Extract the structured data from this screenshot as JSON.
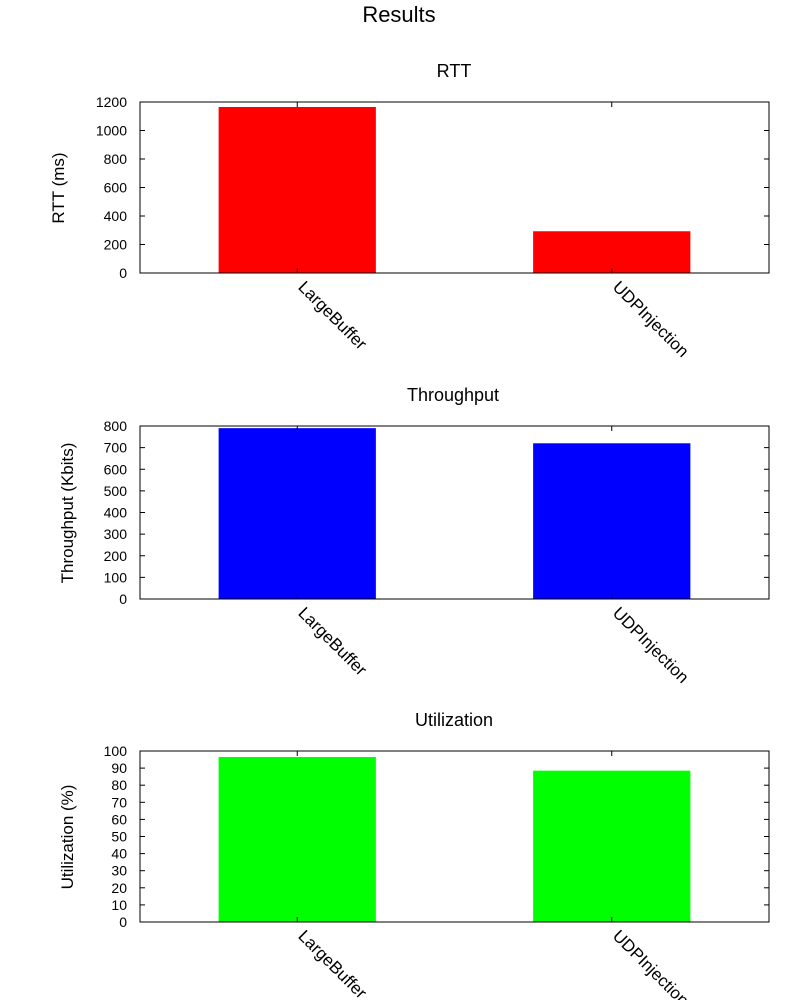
{
  "figure": {
    "suptitle": "Results"
  },
  "chart_data": [
    {
      "type": "bar",
      "title": "RTT",
      "xlabel": "",
      "ylabel": "RTT (ms)",
      "categories": [
        "LargeBuffer",
        "UDPInjection"
      ],
      "values": [
        1165,
        293
      ],
      "ylim": [
        0,
        1200
      ],
      "yticks": [
        0,
        200,
        400,
        600,
        800,
        1000,
        1200
      ],
      "color": "#ff0000",
      "grid": false,
      "legend": "none"
    },
    {
      "type": "bar",
      "title": "Throughput",
      "xlabel": "",
      "ylabel": "Throughput (Kbits)",
      "categories": [
        "LargeBuffer",
        "UDPInjection"
      ],
      "values": [
        790,
        720
      ],
      "ylim": [
        0,
        800
      ],
      "yticks": [
        0,
        100,
        200,
        300,
        400,
        500,
        600,
        700,
        800
      ],
      "color": "#0000ff",
      "grid": false,
      "legend": "none"
    },
    {
      "type": "bar",
      "title": "Utilization",
      "xlabel": "",
      "ylabel": "Utilization (%)",
      "categories": [
        "LargeBuffer",
        "UDPInjection"
      ],
      "values": [
        96.5,
        88.5
      ],
      "ylim": [
        0,
        100
      ],
      "yticks": [
        0,
        10,
        20,
        30,
        40,
        50,
        60,
        70,
        80,
        90,
        100
      ],
      "color": "#00ff00",
      "grid": false,
      "legend": "none"
    }
  ]
}
